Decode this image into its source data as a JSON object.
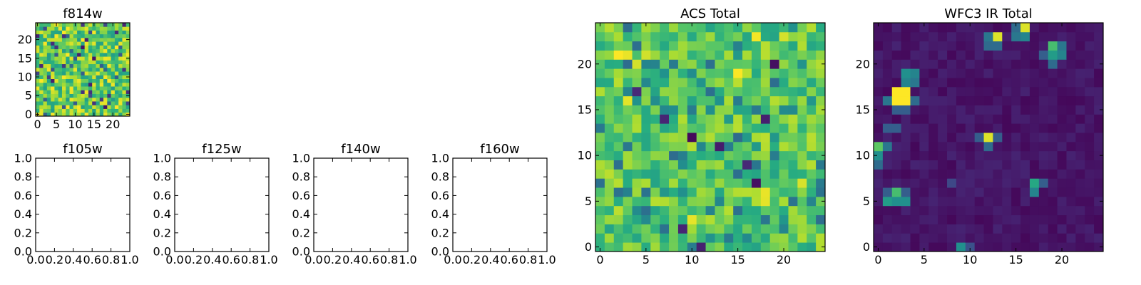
{
  "chart_data": [
    {
      "id": "f814w",
      "type": "heatmap",
      "title": "f814w",
      "grid_size": 25,
      "x_ticks": [
        "0",
        "5",
        "10",
        "15",
        "20"
      ],
      "y_ticks": [
        "0",
        "5",
        "10",
        "15",
        "20"
      ],
      "colormap": "viridis",
      "pattern": "uniform-noise",
      "value_range": [
        0.0,
        1.0
      ],
      "seed": 7
    },
    {
      "id": "f105w",
      "type": "empty",
      "title": "f105w",
      "xlim": [
        0,
        1
      ],
      "ylim": [
        0,
        1
      ],
      "x_ticks": [
        "0.0",
        "0.2",
        "0.4",
        "0.6",
        "0.8",
        "1.0"
      ],
      "y_ticks": [
        "0.0",
        "0.2",
        "0.4",
        "0.6",
        "0.8",
        "1.0"
      ]
    },
    {
      "id": "f125w",
      "type": "empty",
      "title": "f125w",
      "xlim": [
        0,
        1
      ],
      "ylim": [
        0,
        1
      ],
      "x_ticks": [
        "0.0",
        "0.2",
        "0.4",
        "0.6",
        "0.8",
        "1.0"
      ],
      "y_ticks": [
        "0.0",
        "0.2",
        "0.4",
        "0.6",
        "0.8",
        "1.0"
      ]
    },
    {
      "id": "f140w",
      "type": "empty",
      "title": "f140w",
      "xlim": [
        0,
        1
      ],
      "ylim": [
        0,
        1
      ],
      "x_ticks": [
        "0.0",
        "0.2",
        "0.4",
        "0.6",
        "0.8",
        "1.0"
      ],
      "y_ticks": [
        "0.0",
        "0.2",
        "0.4",
        "0.6",
        "0.8",
        "1.0"
      ]
    },
    {
      "id": "f160w",
      "type": "empty",
      "title": "f160w",
      "xlim": [
        0,
        1
      ],
      "ylim": [
        0,
        1
      ],
      "x_ticks": [
        "0.0",
        "0.2",
        "0.4",
        "0.6",
        "0.8",
        "1.0"
      ],
      "y_ticks": [
        "0.0",
        "0.2",
        "0.4",
        "0.6",
        "0.8",
        "1.0"
      ]
    },
    {
      "id": "acs_total",
      "type": "heatmap",
      "title": "ACS Total",
      "grid_size": 25,
      "x_ticks": [
        "0",
        "5",
        "10",
        "15",
        "20"
      ],
      "y_ticks": [
        "0",
        "5",
        "10",
        "15",
        "20"
      ],
      "colormap": "viridis",
      "pattern": "uniform-noise-bright",
      "value_range": [
        0.0,
        1.0
      ],
      "seed": 21,
      "dark_cells": [
        [
          11,
          0
        ],
        [
          9,
          2
        ],
        [
          13,
          11
        ],
        [
          10,
          12
        ],
        [
          16,
          9
        ],
        [
          7,
          14
        ],
        [
          19,
          20
        ],
        [
          4,
          17
        ],
        [
          17,
          7
        ],
        [
          18,
          14
        ]
      ],
      "bright_cells": [
        [
          2,
          21
        ],
        [
          3,
          21
        ],
        [
          5,
          21
        ],
        [
          4,
          20
        ],
        [
          18,
          5
        ],
        [
          18,
          6
        ],
        [
          22,
          7
        ],
        [
          3,
          16
        ],
        [
          10,
          3
        ],
        [
          15,
          19
        ],
        [
          17,
          23
        ],
        [
          20,
          23
        ]
      ]
    },
    {
      "id": "wfc3_ir_total",
      "type": "heatmap",
      "title": "WFC3 IR Total",
      "grid_size": 25,
      "x_ticks": [
        "0",
        "5",
        "10",
        "15",
        "20"
      ],
      "y_ticks": [
        "0",
        "5",
        "10",
        "15",
        "20"
      ],
      "colormap": "viridis",
      "pattern": "dark-background-with-sources",
      "value_range": [
        0.0,
        1.0
      ],
      "seed": 55,
      "sources": [
        {
          "x": 2,
          "y": 16,
          "v": 1.0
        },
        {
          "x": 3,
          "y": 16,
          "v": 1.0
        },
        {
          "x": 2,
          "y": 17,
          "v": 1.0
        },
        {
          "x": 3,
          "y": 17,
          "v": 1.0
        },
        {
          "x": 1,
          "y": 16,
          "v": 0.4
        },
        {
          "x": 4,
          "y": 16,
          "v": 0.35
        },
        {
          "x": 3,
          "y": 18,
          "v": 0.45
        },
        {
          "x": 4,
          "y": 18,
          "v": 0.4
        },
        {
          "x": 3,
          "y": 19,
          "v": 0.5
        },
        {
          "x": 4,
          "y": 19,
          "v": 0.45
        },
        {
          "x": 2,
          "y": 15,
          "v": 0.3
        },
        {
          "x": 3,
          "y": 15,
          "v": 0.3
        },
        {
          "x": 12,
          "y": 12,
          "v": 0.95
        },
        {
          "x": 12,
          "y": 11,
          "v": 0.35
        },
        {
          "x": 13,
          "y": 12,
          "v": 0.3
        },
        {
          "x": 11,
          "y": 12,
          "v": 0.3
        },
        {
          "x": 13,
          "y": 23,
          "v": 0.95
        },
        {
          "x": 12,
          "y": 23,
          "v": 0.4
        },
        {
          "x": 13,
          "y": 22,
          "v": 0.35
        },
        {
          "x": 12,
          "y": 22,
          "v": 0.35
        },
        {
          "x": 16,
          "y": 24,
          "v": 0.95
        },
        {
          "x": 16,
          "y": 23,
          "v": 0.45
        },
        {
          "x": 15,
          "y": 23,
          "v": 0.4
        },
        {
          "x": 15,
          "y": 24,
          "v": 0.35
        },
        {
          "x": 19,
          "y": 22,
          "v": 0.7
        },
        {
          "x": 19,
          "y": 21,
          "v": 0.55
        },
        {
          "x": 20,
          "y": 21,
          "v": 0.45
        },
        {
          "x": 20,
          "y": 22,
          "v": 0.4
        },
        {
          "x": 19,
          "y": 20,
          "v": 0.35
        },
        {
          "x": 18,
          "y": 21,
          "v": 0.3
        },
        {
          "x": 0,
          "y": 11,
          "v": 0.75
        },
        {
          "x": 0,
          "y": 10,
          "v": 0.5
        },
        {
          "x": 1,
          "y": 11,
          "v": 0.4
        },
        {
          "x": 0,
          "y": 9,
          "v": 0.35
        },
        {
          "x": 2,
          "y": 6,
          "v": 0.7
        },
        {
          "x": 1,
          "y": 5,
          "v": 0.55
        },
        {
          "x": 2,
          "y": 5,
          "v": 0.5
        },
        {
          "x": 3,
          "y": 5,
          "v": 0.5
        },
        {
          "x": 1,
          "y": 6,
          "v": 0.3
        },
        {
          "x": 3,
          "y": 6,
          "v": 0.3
        },
        {
          "x": 17,
          "y": 7,
          "v": 0.6
        },
        {
          "x": 17,
          "y": 6,
          "v": 0.45
        },
        {
          "x": 18,
          "y": 7,
          "v": 0.3
        },
        {
          "x": 9,
          "y": 0,
          "v": 0.5
        },
        {
          "x": 10,
          "y": 0,
          "v": 0.25
        },
        {
          "x": 1,
          "y": 13,
          "v": 0.3
        },
        {
          "x": 2,
          "y": 13,
          "v": 0.3
        },
        {
          "x": 8,
          "y": 7,
          "v": 0.22
        }
      ]
    }
  ]
}
